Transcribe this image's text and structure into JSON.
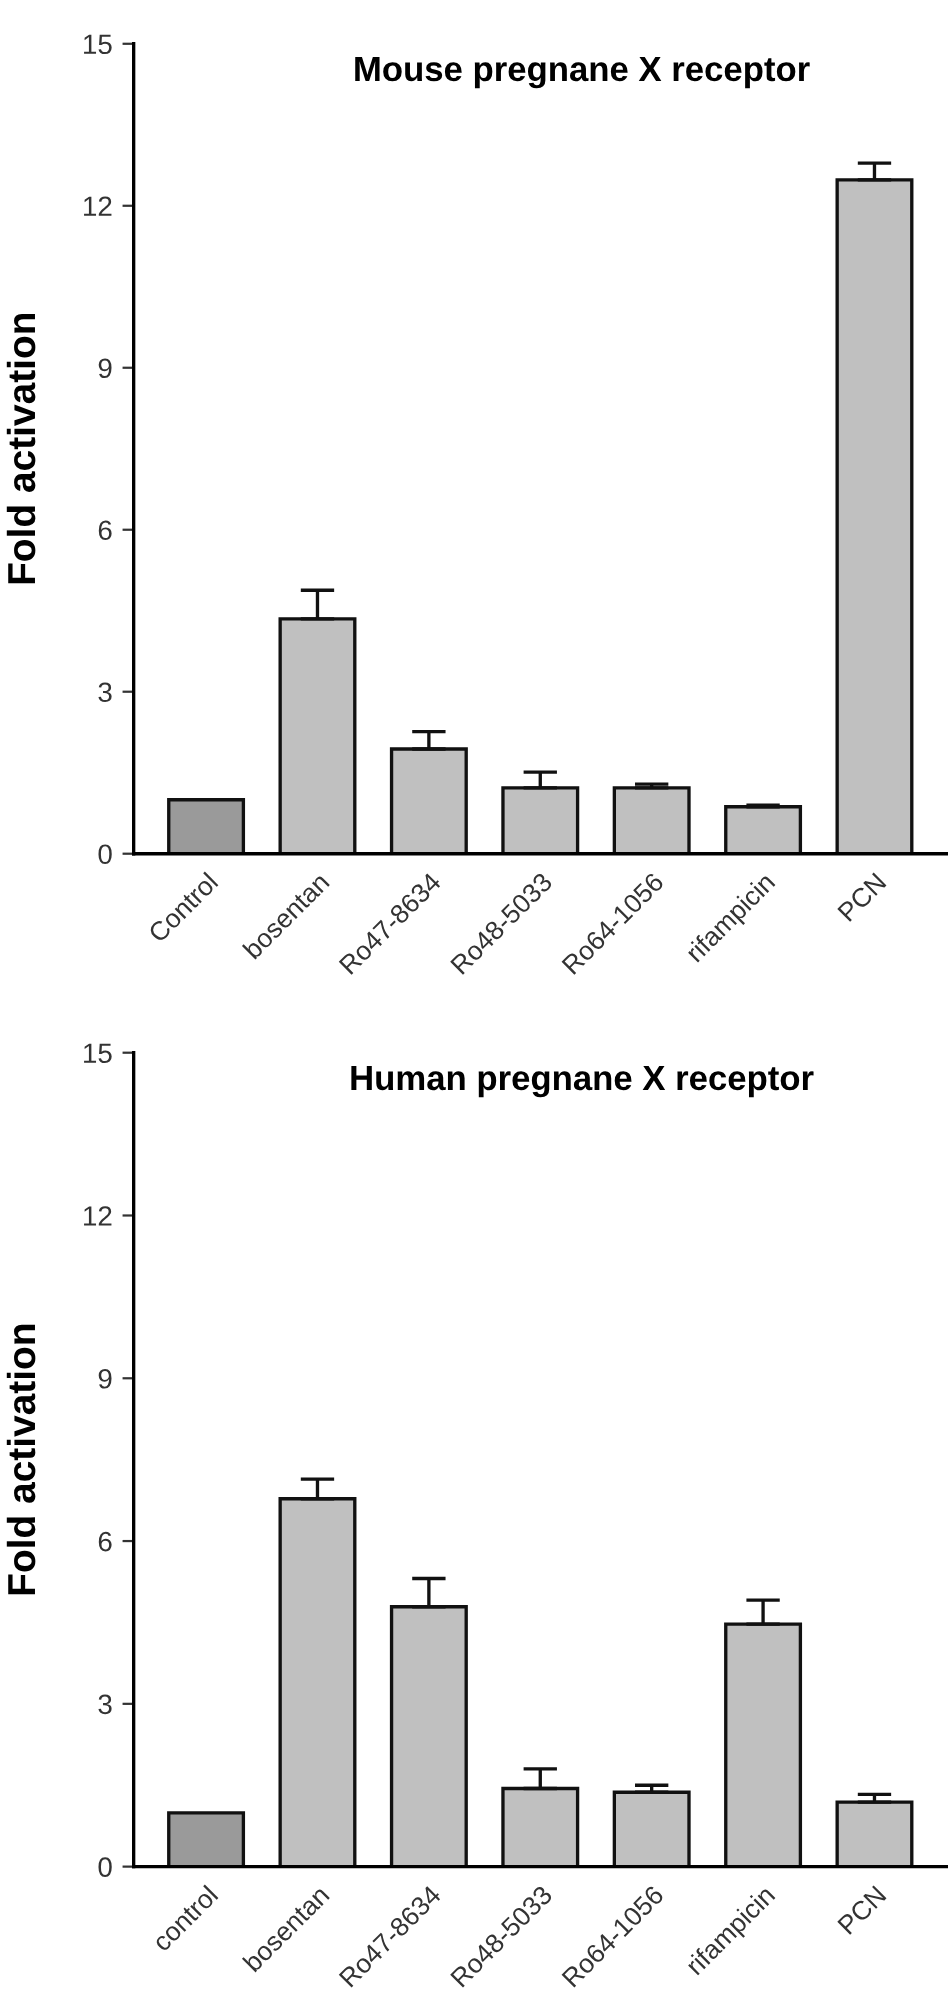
{
  "chart_data": [
    {
      "type": "bar",
      "title": "Mouse pregnane X receptor",
      "ylabel": "Fold activation",
      "categories": [
        "Control",
        "bosentan",
        "Ro47-8634",
        "Ro48-5033",
        "Ro64-1056",
        "rifampicin",
        "PCN"
      ],
      "values": [
        1.0,
        4.35,
        1.94,
        1.22,
        1.22,
        0.87,
        12.48
      ],
      "errors": [
        null,
        [
          4.35,
          4.88
        ],
        [
          1.94,
          2.26
        ],
        [
          1.22,
          1.51
        ],
        [
          1.22,
          1.29
        ],
        [
          0.87,
          0.9
        ],
        [
          12.48,
          12.79
        ]
      ],
      "colors": [
        "#9a9a9a",
        "#c0c0c0",
        "#c0c0c0",
        "#c0c0c0",
        "#c0c0c0",
        "#c0c0c0",
        "#c0c0c0"
      ],
      "ylim": [
        0,
        15
      ],
      "yticks": [
        0,
        3,
        6,
        9,
        12,
        15
      ],
      "grid": false,
      "legend": false
    },
    {
      "type": "bar",
      "title": "Human pregnane X receptor",
      "ylabel": "Fold activation",
      "categories": [
        "control",
        "bosentan",
        "Ro47-8634",
        "Ro48-5033",
        "Ro64-1056",
        "rifampicin",
        "PCN"
      ],
      "values": [
        0.99,
        6.78,
        4.79,
        1.44,
        1.37,
        4.47,
        1.19
      ],
      "errors": [
        null,
        [
          6.78,
          7.14
        ],
        [
          4.79,
          5.31
        ],
        [
          1.44,
          1.8
        ],
        [
          1.37,
          1.5
        ],
        [
          4.47,
          4.91
        ],
        [
          1.19,
          1.33
        ]
      ],
      "colors": [
        "#9a9a9a",
        "#c0c0c0",
        "#c0c0c0",
        "#c0c0c0",
        "#c0c0c0",
        "#c0c0c0",
        "#c0c0c0"
      ],
      "ylim": [
        0,
        15
      ],
      "yticks": [
        0,
        3,
        6,
        9,
        12,
        15
      ],
      "grid": false,
      "legend": false
    }
  ]
}
